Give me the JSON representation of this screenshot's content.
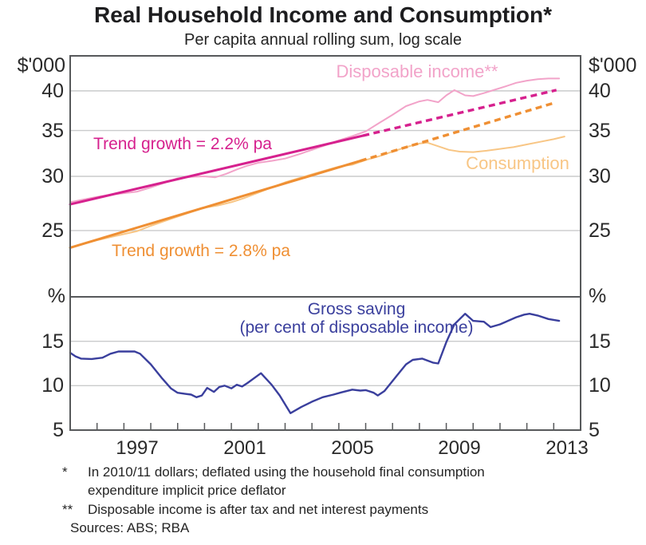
{
  "title": "Real Household Income and Consumption*",
  "subtitle": "Per capita annual rolling sum, log scale",
  "annotations": {
    "disposable_income": "Disposable income**",
    "income_trend": "Trend growth = 2.2% pa",
    "consumption": "Consumption",
    "consumption_trend": "Trend growth = 2.8% pa",
    "gross_saving": "Gross saving",
    "gross_saving_sub": "(per cent of disposable income)"
  },
  "footnotes": [
    {
      "marker": "*",
      "lines": [
        "In 2010/11 dollars; deflated using the household final consumption",
        "expenditure implicit price deflator"
      ]
    },
    {
      "marker": "**",
      "lines": [
        "Disposable income is after tax and net interest payments"
      ]
    }
  ],
  "sources": "Sources: ABS; RBA",
  "colors": {
    "disposable_income": "#F2A3C9",
    "income_trend": "#D6218E",
    "consumption": "#F8C685",
    "consumption_trend": "#EF8F33",
    "gross_saving": "#3A3F9D",
    "grid": "#CACBCC",
    "frame": "#57595B",
    "text": "#2A2A2A"
  },
  "chart_data": {
    "type": "line",
    "title": "Real Household Income and Consumption*",
    "subtitle": "Per capita annual rolling sum, log scale",
    "x_axis": {
      "range": [
        1995,
        2014
      ],
      "tick_interval_years": 1,
      "label_years": [
        1997,
        2001,
        2005,
        2009,
        2013
      ],
      "labels": [
        "1997",
        "2001",
        "2005",
        "2009",
        "2013"
      ]
    },
    "panels": [
      {
        "name": "income_and_consumption",
        "unit_label": "$'000",
        "scale": "log",
        "ylim": [
          20,
          45
        ],
        "yticks": [
          "25",
          "30",
          "35",
          "40"
        ],
        "ytick_values": [
          25,
          30,
          35,
          40
        ],
        "gridline_values": [
          25,
          30,
          35,
          40
        ],
        "series": [
          {
            "name": "disposable_income",
            "label": "Disposable income**",
            "color_key": "disposable_income",
            "width": 2,
            "dash": "",
            "points": [
              [
                1995.0,
                27.5
              ],
              [
                1995.5,
                27.75
              ],
              [
                1996.0,
                28.0
              ],
              [
                1996.5,
                28.2
              ],
              [
                1997.0,
                28.35
              ],
              [
                1997.5,
                28.5
              ],
              [
                1998.0,
                28.9
              ],
              [
                1998.5,
                29.35
              ],
              [
                1999.0,
                29.8
              ],
              [
                1999.5,
                29.95
              ],
              [
                2000.0,
                30.0
              ],
              [
                2000.4,
                29.9
              ],
              [
                2000.8,
                30.25
              ],
              [
                2001.2,
                30.7
              ],
              [
                2001.6,
                31.1
              ],
              [
                2002.0,
                31.4
              ],
              [
                2002.5,
                31.6
              ],
              [
                2003.0,
                31.85
              ],
              [
                2003.5,
                32.3
              ],
              [
                2004.0,
                32.8
              ],
              [
                2004.5,
                33.3
              ],
              [
                2005.0,
                33.85
              ],
              [
                2005.5,
                34.35
              ],
              [
                2006.0,
                34.9
              ],
              [
                2006.5,
                35.9
              ],
              [
                2007.0,
                36.9
              ],
              [
                2007.5,
                38.0
              ],
              [
                2008.0,
                38.6
              ],
              [
                2008.3,
                38.8
              ],
              [
                2008.7,
                38.5
              ],
              [
                2009.0,
                39.4
              ],
              [
                2009.3,
                40.1
              ],
              [
                2009.7,
                39.4
              ],
              [
                2010.0,
                39.3
              ],
              [
                2010.4,
                39.7
              ],
              [
                2010.8,
                40.15
              ],
              [
                2011.2,
                40.6
              ],
              [
                2011.6,
                41.1
              ],
              [
                2012.0,
                41.4
              ],
              [
                2012.4,
                41.6
              ],
              [
                2012.8,
                41.7
              ],
              [
                2013.2,
                41.7
              ]
            ]
          },
          {
            "name": "consumption",
            "label": "Consumption",
            "color_key": "consumption",
            "width": 2,
            "dash": "",
            "points": [
              [
                1995.0,
                23.6
              ],
              [
                1995.5,
                23.9
              ],
              [
                1996.0,
                24.2
              ],
              [
                1996.5,
                24.45
              ],
              [
                1997.0,
                24.7
              ],
              [
                1997.5,
                24.95
              ],
              [
                1998.0,
                25.4
              ],
              [
                1998.5,
                25.8
              ],
              [
                1999.0,
                26.2
              ],
              [
                1999.5,
                26.6
              ],
              [
                2000.0,
                27.0
              ],
              [
                2000.5,
                27.2
              ],
              [
                2001.0,
                27.5
              ],
              [
                2001.5,
                27.9
              ],
              [
                2002.0,
                28.4
              ],
              [
                2002.5,
                28.9
              ],
              [
                2003.0,
                29.4
              ],
              [
                2003.5,
                29.8
              ],
              [
                2004.0,
                30.2
              ],
              [
                2004.5,
                30.6
              ],
              [
                2005.0,
                31.0
              ],
              [
                2005.5,
                31.2
              ],
              [
                2006.0,
                31.7
              ],
              [
                2006.5,
                32.1
              ],
              [
                2007.0,
                32.6
              ],
              [
                2007.5,
                33.1
              ],
              [
                2008.0,
                33.5
              ],
              [
                2008.3,
                33.6
              ],
              [
                2008.7,
                33.2
              ],
              [
                2009.1,
                32.8
              ],
              [
                2009.5,
                32.6
              ],
              [
                2010.0,
                32.55
              ],
              [
                2010.5,
                32.7
              ],
              [
                2011.0,
                32.9
              ],
              [
                2011.5,
                33.1
              ],
              [
                2012.0,
                33.4
              ],
              [
                2012.5,
                33.7
              ],
              [
                2013.0,
                34.0
              ],
              [
                2013.4,
                34.3
              ]
            ]
          },
          {
            "name": "income_trend_solid",
            "label": "Trend growth = 2.2% pa",
            "color_key": "income_trend",
            "width": 3,
            "dash": "",
            "points": [
              [
                1995.0,
                27.3
              ],
              [
                2005.9,
                34.4
              ]
            ]
          },
          {
            "name": "income_trend_projection",
            "label": "Trend growth = 2.2% pa (projection)",
            "color_key": "income_trend",
            "width": 3.4,
            "dash": "8 5.5",
            "points": [
              [
                2005.9,
                34.4
              ],
              [
                2013.1,
                40.1
              ]
            ]
          },
          {
            "name": "consumption_trend_solid",
            "label": "Trend growth = 2.8% pa",
            "color_key": "consumption_trend",
            "width": 3,
            "dash": "",
            "points": [
              [
                1995.0,
                23.6
              ],
              [
                2005.8,
                31.6
              ]
            ]
          },
          {
            "name": "consumption_trend_projection",
            "label": "Trend growth = 2.8% pa (projection)",
            "color_key": "consumption_trend",
            "width": 3.4,
            "dash": "8 5.5",
            "points": [
              [
                2005.8,
                31.6
              ],
              [
                2013.0,
                38.4
              ]
            ]
          }
        ]
      },
      {
        "name": "gross_saving",
        "unit_label": "%",
        "scale": "linear",
        "ylim": [
          5,
          20
        ],
        "yticks": [
          "5",
          "10",
          "15"
        ],
        "ytick_values": [
          5,
          10,
          15
        ],
        "gridline_values": [
          10,
          15
        ],
        "series": [
          {
            "name": "gross_saving",
            "label": "Gross saving (per cent of disposable income)",
            "color_key": "gross_saving",
            "width": 2.4,
            "dash": "",
            "points": [
              [
                1995.0,
                13.7
              ],
              [
                1995.2,
                13.3
              ],
              [
                1995.4,
                13.05
              ],
              [
                1995.8,
                13.0
              ],
              [
                1996.2,
                13.15
              ],
              [
                1996.5,
                13.6
              ],
              [
                1996.8,
                13.85
              ],
              [
                1997.4,
                13.85
              ],
              [
                1997.6,
                13.6
              ],
              [
                1998.0,
                12.4
              ],
              [
                1998.4,
                10.9
              ],
              [
                1998.75,
                9.7
              ],
              [
                1999.0,
                9.2
              ],
              [
                1999.25,
                9.1
              ],
              [
                1999.5,
                9.0
              ],
              [
                1999.7,
                8.7
              ],
              [
                1999.9,
                8.9
              ],
              [
                2000.1,
                9.75
              ],
              [
                2000.35,
                9.3
              ],
              [
                2000.55,
                9.85
              ],
              [
                2000.75,
                10.0
              ],
              [
                2001.0,
                9.7
              ],
              [
                2001.2,
                10.1
              ],
              [
                2001.4,
                9.9
              ],
              [
                2001.6,
                10.3
              ],
              [
                2002.1,
                11.4
              ],
              [
                2002.5,
                10.1
              ],
              [
                2002.8,
                8.9
              ],
              [
                2003.2,
                6.9
              ],
              [
                2003.6,
                7.6
              ],
              [
                2004.0,
                8.2
              ],
              [
                2004.4,
                8.7
              ],
              [
                2004.8,
                9.0
              ],
              [
                2005.1,
                9.25
              ],
              [
                2005.5,
                9.55
              ],
              [
                2005.8,
                9.45
              ],
              [
                2006.0,
                9.5
              ],
              [
                2006.3,
                9.2
              ],
              [
                2006.45,
                8.9
              ],
              [
                2006.7,
                9.4
              ],
              [
                2007.15,
                11.1
              ],
              [
                2007.5,
                12.4
              ],
              [
                2007.75,
                12.9
              ],
              [
                2008.1,
                13.05
              ],
              [
                2008.5,
                12.6
              ],
              [
                2008.7,
                12.5
              ],
              [
                2009.0,
                14.9
              ],
              [
                2009.3,
                16.9
              ],
              [
                2009.7,
                18.1
              ],
              [
                2010.0,
                17.3
              ],
              [
                2010.4,
                17.2
              ],
              [
                2010.65,
                16.6
              ],
              [
                2011.0,
                16.9
              ],
              [
                2011.6,
                17.7
              ],
              [
                2011.9,
                18.0
              ],
              [
                2012.1,
                18.1
              ],
              [
                2012.4,
                17.9
              ],
              [
                2012.8,
                17.5
              ],
              [
                2013.2,
                17.3
              ]
            ]
          }
        ]
      }
    ]
  }
}
